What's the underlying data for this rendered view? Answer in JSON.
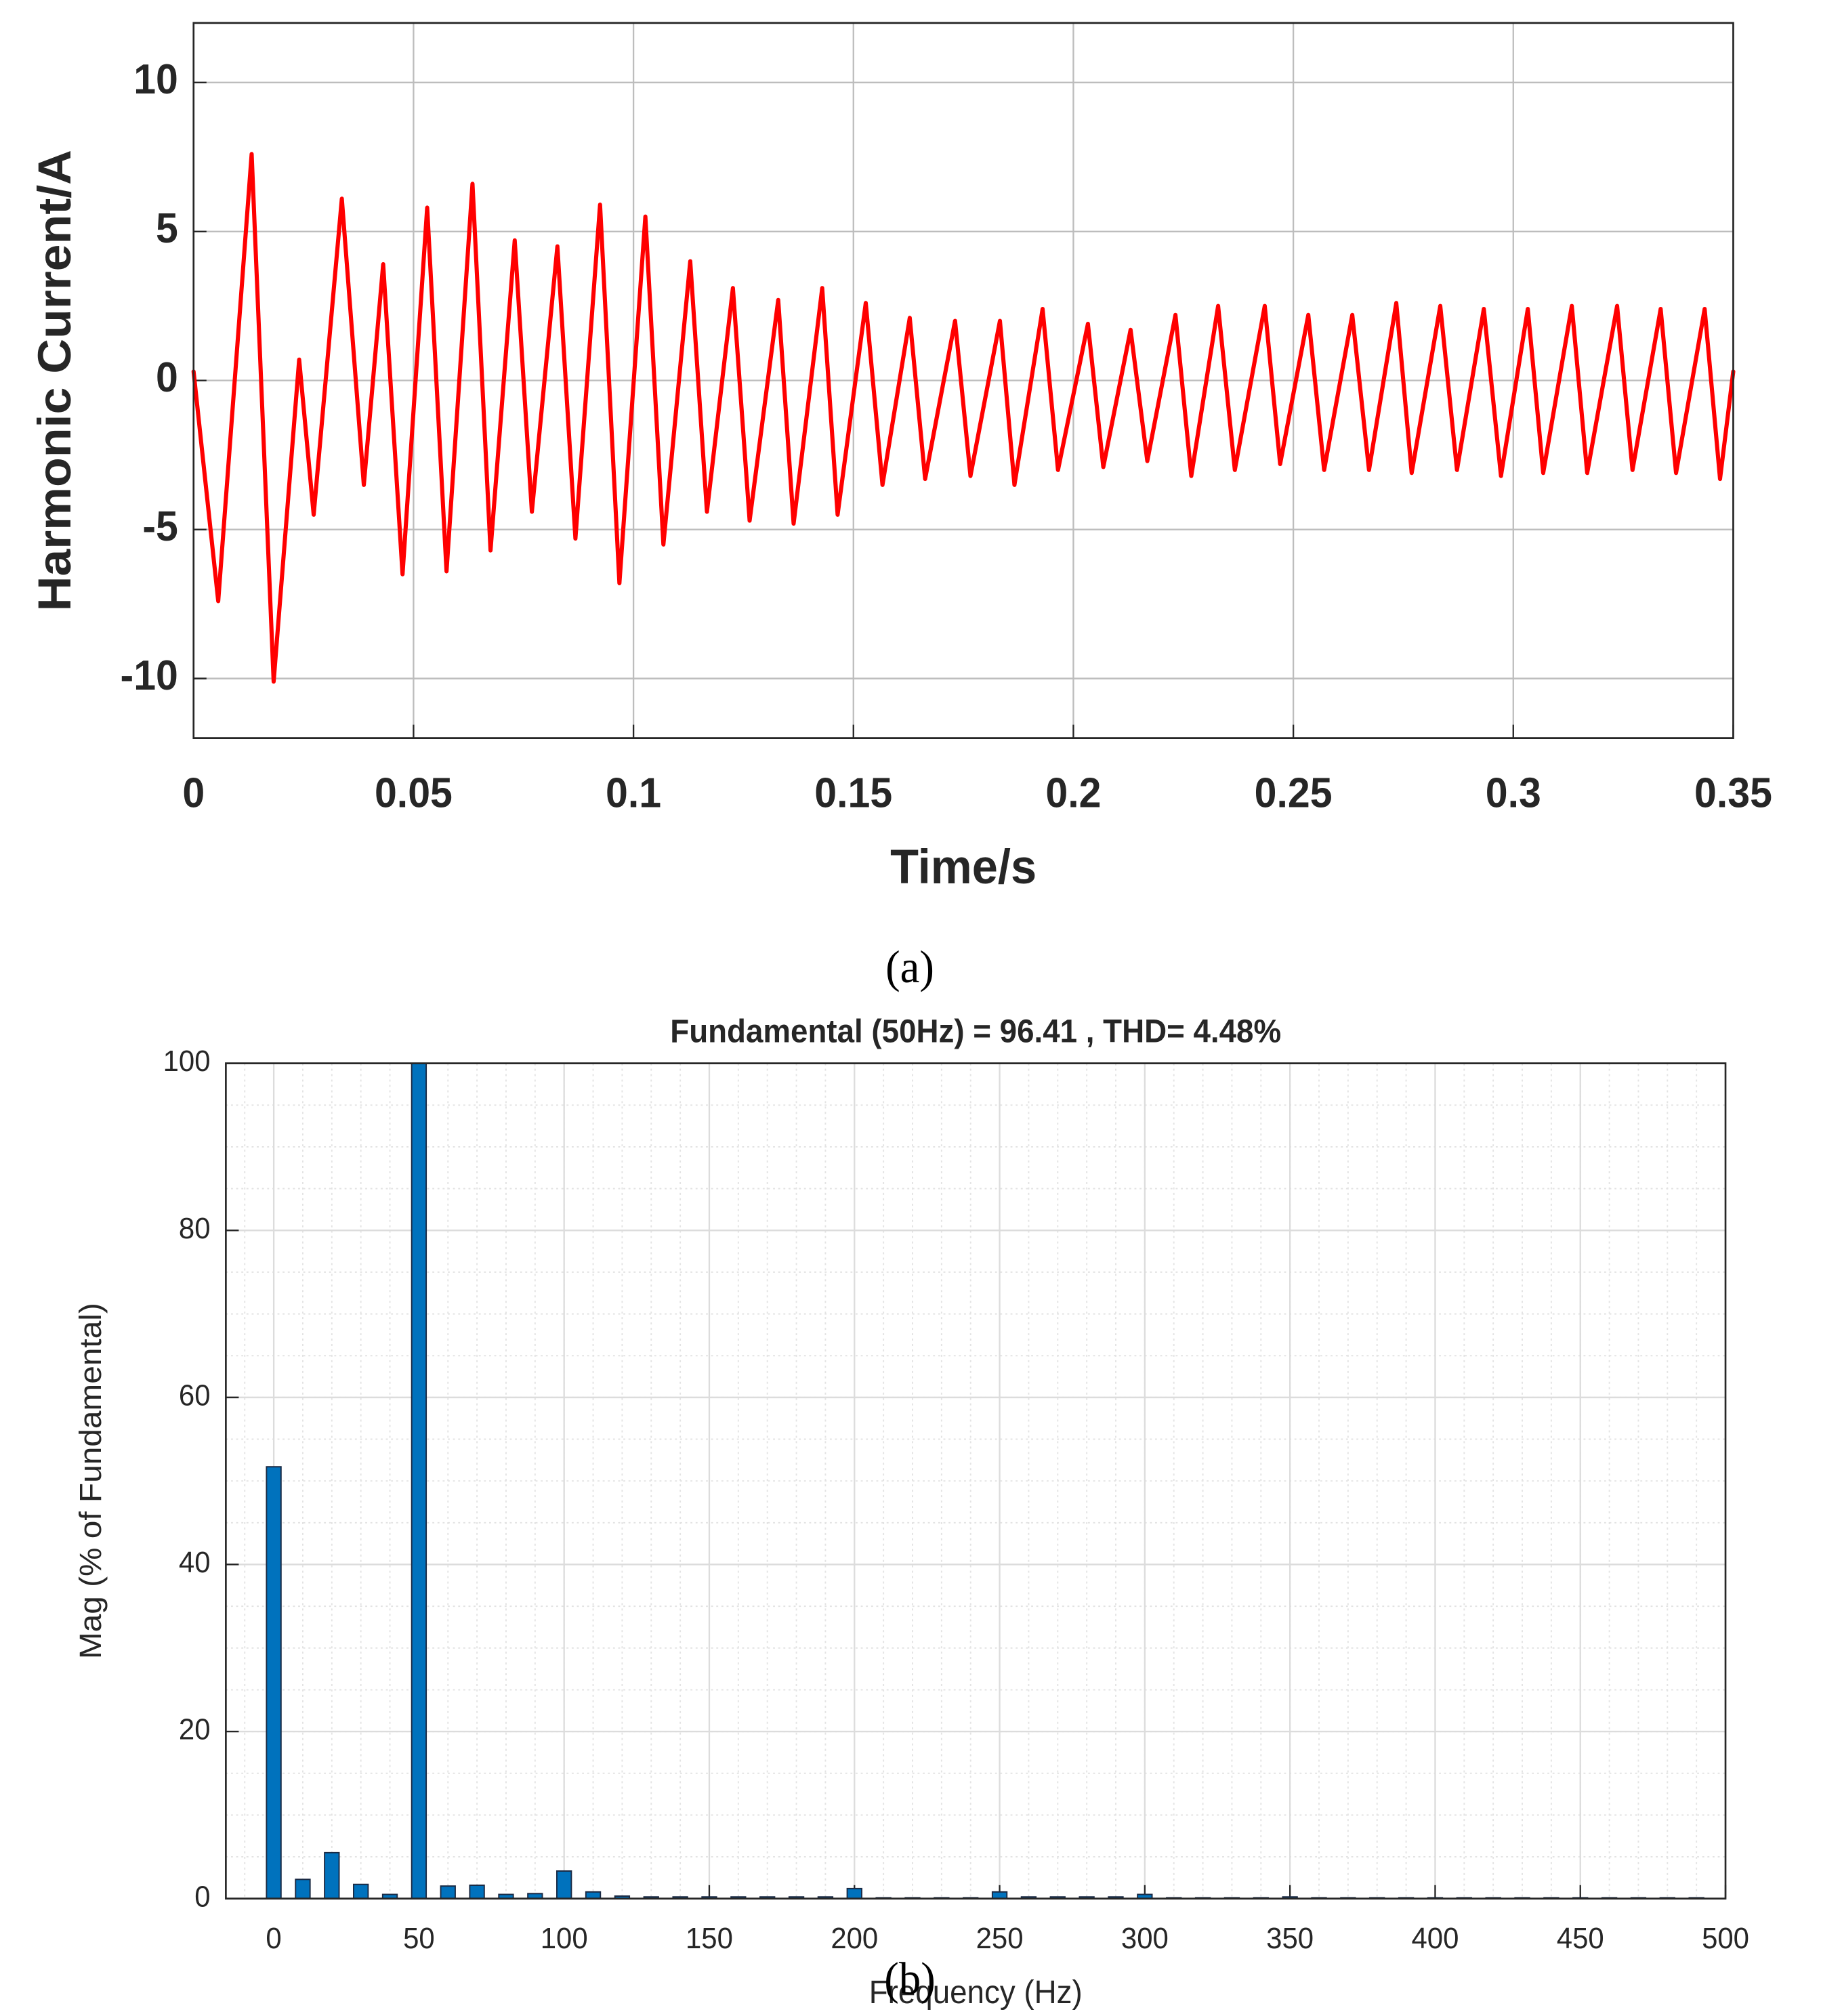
{
  "chart_data": [
    {
      "type": "line",
      "caption": "(a)",
      "xlabel": "Time/s",
      "ylabel": "Harmonic Current/A",
      "color": "#ff0000",
      "grid": true,
      "xlim": [
        0,
        0.35
      ],
      "xticks": [
        0,
        0.05,
        0.1,
        0.15,
        0.2,
        0.25,
        0.3,
        0.35
      ],
      "ylim": [
        -12,
        12
      ],
      "yticks": [
        -10,
        -5,
        0,
        5,
        10
      ],
      "x": [
        0,
        0.0056,
        0.0132,
        0.0182,
        0.024,
        0.0273,
        0.0337,
        0.0387,
        0.0431,
        0.0475,
        0.0531,
        0.0575,
        0.0634,
        0.0675,
        0.073,
        0.0769,
        0.0827,
        0.0868,
        0.0924,
        0.0968,
        0.1027,
        0.1068,
        0.1129,
        0.1167,
        0.1226,
        0.1264,
        0.1329,
        0.1364,
        0.1429,
        0.1464,
        0.1528,
        0.1566,
        0.1628,
        0.1663,
        0.1731,
        0.1766,
        0.1833,
        0.1866,
        0.193,
        0.1965,
        0.2033,
        0.2068,
        0.213,
        0.2168,
        0.2232,
        0.2268,
        0.2329,
        0.2367,
        0.2435,
        0.247,
        0.2534,
        0.257,
        0.2634,
        0.2672,
        0.2734,
        0.2769,
        0.2834,
        0.2872,
        0.2933,
        0.2972,
        0.3033,
        0.3068,
        0.3133,
        0.3168,
        0.3236,
        0.3271,
        0.3335,
        0.337,
        0.3435,
        0.347,
        0.35
      ],
      "values": [
        0.3,
        -7.4,
        7.6,
        -10.1,
        0.7,
        -4.5,
        6.1,
        -3.5,
        3.9,
        -6.5,
        5.8,
        -6.4,
        6.6,
        -5.7,
        4.7,
        -4.4,
        4.5,
        -5.3,
        5.9,
        -6.8,
        5.5,
        -5.5,
        4.0,
        -4.4,
        3.1,
        -4.7,
        2.7,
        -4.8,
        3.1,
        -4.5,
        2.6,
        -3.5,
        2.1,
        -3.3,
        2.0,
        -3.2,
        2.0,
        -3.5,
        2.4,
        -3.0,
        1.9,
        -2.9,
        1.7,
        -2.7,
        2.2,
        -3.2,
        2.5,
        -3.0,
        2.5,
        -2.8,
        2.2,
        -3.0,
        2.2,
        -3.0,
        2.6,
        -3.1,
        2.5,
        -3.0,
        2.4,
        -3.2,
        2.4,
        -3.1,
        2.5,
        -3.1,
        2.5,
        -3.0,
        2.4,
        -3.1,
        2.4,
        -3.3,
        0.3
      ]
    },
    {
      "type": "bar",
      "caption": "(b)",
      "title": "Fundamental (50Hz) = 96.41 , THD= 4.48%",
      "xlabel": "Frequency (Hz)",
      "ylabel": "Mag (% of Fundamental)",
      "color": "#0072bd",
      "edge_color": "#1a2a44",
      "grid": true,
      "minor_grid": true,
      "xlim": [
        -16.5,
        500
      ],
      "xticks": [
        0,
        50,
        100,
        150,
        200,
        250,
        300,
        350,
        400,
        450,
        500
      ],
      "ylim": [
        0,
        100
      ],
      "yticks": [
        0,
        20,
        40,
        60,
        80,
        100
      ],
      "x": [
        0,
        10,
        20,
        30,
        40,
        50,
        60,
        70,
        80,
        90,
        100,
        110,
        120,
        130,
        140,
        150,
        160,
        170,
        180,
        190,
        200,
        210,
        220,
        230,
        240,
        250,
        260,
        270,
        280,
        290,
        300,
        310,
        320,
        330,
        340,
        350,
        360,
        370,
        380,
        390,
        400,
        410,
        420,
        430,
        440,
        450,
        460,
        470,
        480,
        490
      ],
      "values": [
        51.7,
        2.3,
        5.5,
        1.7,
        0.5,
        100,
        1.5,
        1.6,
        0.5,
        0.6,
        3.3,
        0.8,
        0.3,
        0.2,
        0.2,
        0.2,
        0.2,
        0.2,
        0.2,
        0.2,
        1.2,
        0.1,
        0.1,
        0.1,
        0.1,
        0.8,
        0.2,
        0.2,
        0.2,
        0.2,
        0.5,
        0.1,
        0.1,
        0.1,
        0.1,
        0.2,
        0.1,
        0.1,
        0.1,
        0.1,
        0.1,
        0.1,
        0.1,
        0.1,
        0.1,
        0.1,
        0.1,
        0.1,
        0.1,
        0.1
      ]
    }
  ]
}
